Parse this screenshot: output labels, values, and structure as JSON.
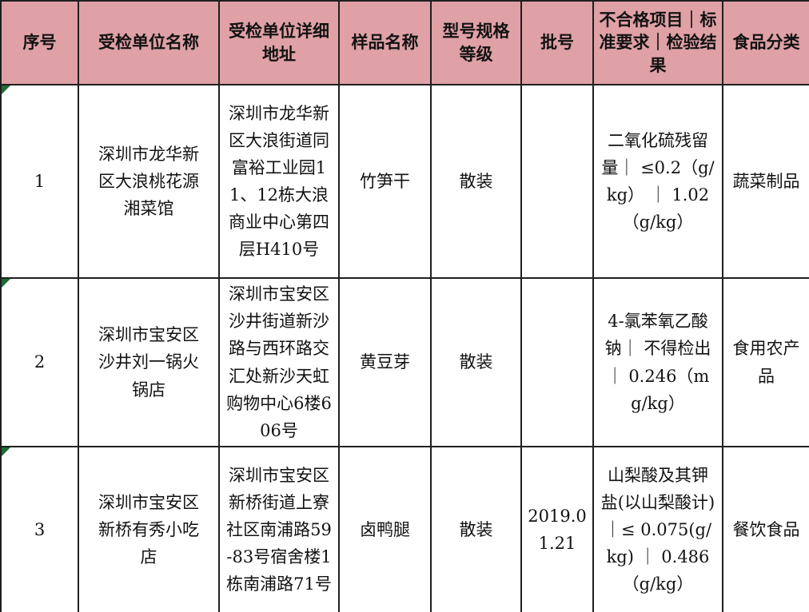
{
  "colors": {
    "header_bg": "#dfa1a6",
    "border": "#1f1f1f",
    "corner_triangle": "#1e6b34",
    "text": "#121212"
  },
  "icons": {
    "cell_corner_mark": "excel-green-triangle-icon"
  },
  "table": {
    "columns": [
      {
        "key": "no",
        "label": "序号"
      },
      {
        "key": "name",
        "label": "受检单位名称"
      },
      {
        "key": "address",
        "label": "受检单位详细地址"
      },
      {
        "key": "sample",
        "label": "样品名称"
      },
      {
        "key": "spec",
        "label": "型号规格等级"
      },
      {
        "key": "batch",
        "label": "批号"
      },
      {
        "key": "issue",
        "label": "不合格项目｜标准要求｜检验结果"
      },
      {
        "key": "category",
        "label": "食品分类"
      }
    ],
    "rows": [
      {
        "no": "1",
        "name": "深圳市龙华新区大浪桃花源湘菜馆",
        "address": "深圳市龙华新区大浪街道同富裕工业园11、12栋大浪商业中心第四层H410号",
        "sample": "竹笋干",
        "spec": "散装",
        "batch": "",
        "issue": "二氧化硫残留量｜ ≤0.2（g/kg） ｜ 1.02（g/kg）",
        "category": "蔬菜制品",
        "corner_mark": true
      },
      {
        "no": "2",
        "name": "深圳市宝安区沙井刘一锅火锅店",
        "address": "深圳市宝安区沙井街道新沙路与西环路交汇处新沙天虹购物中心6楼606号",
        "sample": "黄豆芽",
        "spec": "散装",
        "batch": "",
        "issue": "4-氯苯氧乙酸钠｜ 不得检出 ｜ 0.246（mg/kg）",
        "category": "食用农产品",
        "corner_mark": true
      },
      {
        "no": "3",
        "name": "深圳市宝安区新桥有秀小吃店",
        "address": "深圳市宝安区新桥街道上寮社区南浦路59-83号宿舍楼1栋南浦路71号",
        "sample": "卤鸭腿",
        "spec": "散装",
        "batch": "2019.01.21",
        "issue": "山梨酸及其钾盐(以山梨酸计)｜≤ 0.075(g/kg) ｜ 0.486（g/kg）",
        "category": "餐饮食品",
        "corner_mark": true
      }
    ]
  }
}
